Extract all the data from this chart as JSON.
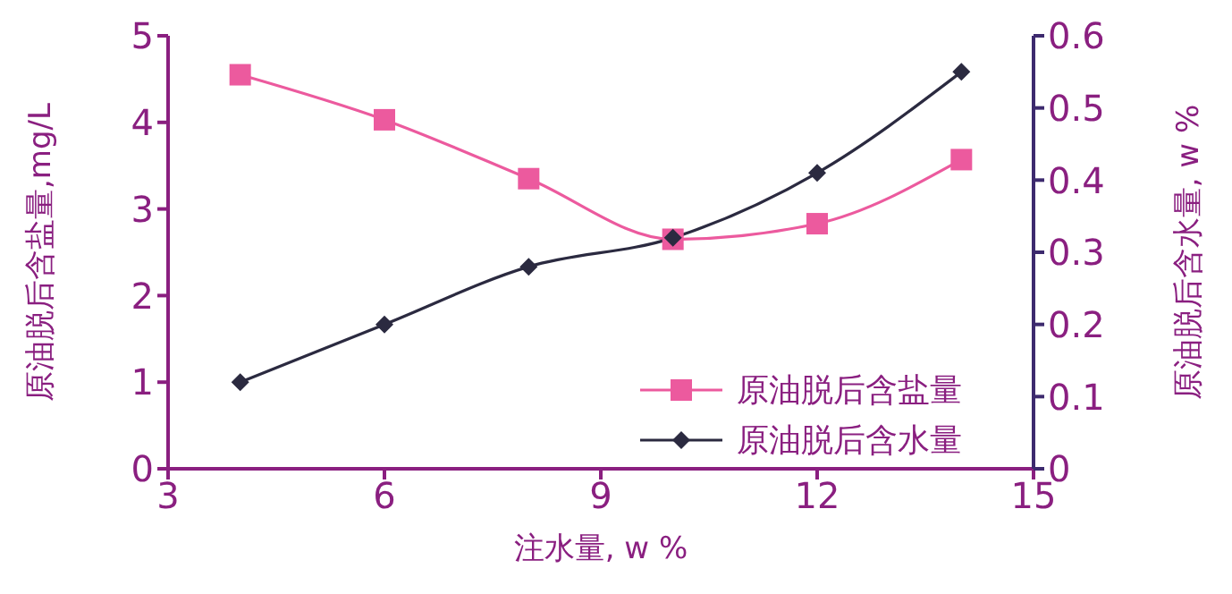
{
  "chart_data": {
    "type": "line",
    "x": [
      4,
      6,
      8,
      10,
      12,
      14
    ],
    "xlabel": "注水量, w %",
    "ylabel": "原油脱后含盐量,mg/L",
    "y2label": "原油脱后含水量, w %",
    "series": [
      {
        "name": "原油脱后含盐量",
        "color": "#ec5a9e",
        "values": [
          4.55,
          4.03,
          3.35,
          2.65,
          2.83,
          3.57
        ],
        "marker": "square"
      },
      {
        "name": "原油脱后含水量",
        "color": "#2b2a40",
        "values": [
          0.12,
          0.2,
          0.28,
          0.32,
          0.41,
          0.55
        ],
        "marker": "diamond",
        "axis": "y2"
      }
    ],
    "xlim": [
      3,
      15
    ],
    "xticks": [
      3,
      6,
      9,
      12,
      15
    ],
    "ylim": [
      0,
      5
    ],
    "yticks": [
      0,
      1,
      2,
      3,
      4,
      5
    ],
    "y2lim": [
      0,
      0.6
    ],
    "y2ticks": [
      0,
      0.1,
      0.2,
      0.3,
      0.4,
      0.5,
      0.6
    ],
    "grid": false,
    "legend": "bottom right",
    "line_style": "solid"
  }
}
